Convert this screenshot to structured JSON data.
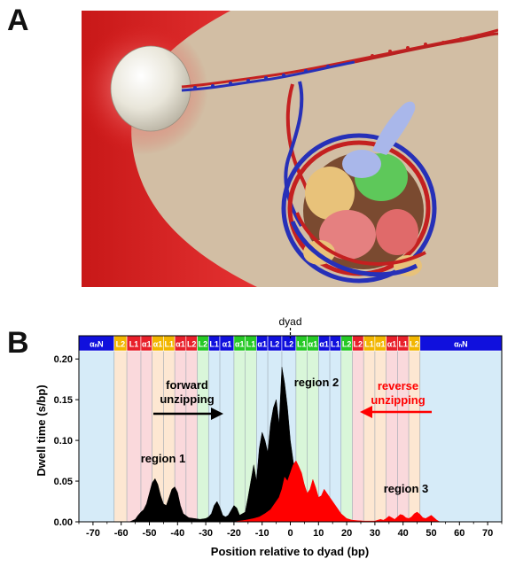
{
  "panels": {
    "a": "A",
    "b": "B"
  },
  "panel_b": {
    "dyad_label": "dyad",
    "region_labels": [
      "region 1",
      "region 2",
      "region 3"
    ],
    "forward": [
      "forward",
      "unzipping"
    ],
    "reverse": [
      "reverse",
      "unzipping"
    ],
    "colors": {
      "forward": "#000000",
      "reverse": "#ff0000"
    },
    "segments": [
      {
        "label": "αₙN",
        "color": "#1010dd",
        "band": "#d6ebf8",
        "from": -75,
        "to": -62.5
      },
      {
        "label": "L2",
        "color": "#f2b600",
        "band": "#fde7d2",
        "from": -62.5,
        "to": -58
      },
      {
        "label": "L1",
        "color": "#e8202a",
        "band": "#fad9dc",
        "from": -58,
        "to": -53
      },
      {
        "label": "α1",
        "color": "#e8202a",
        "band": "#fad9dc",
        "from": -53,
        "to": -49
      },
      {
        "label": "α1",
        "color": "#f2b600",
        "band": "#fde7d2",
        "from": -49,
        "to": -45
      },
      {
        "label": "L1",
        "color": "#f2b600",
        "band": "#fde7d2",
        "from": -45,
        "to": -41
      },
      {
        "label": "α1",
        "color": "#e8202a",
        "band": "#fad9dc",
        "from": -41,
        "to": -37
      },
      {
        "label": "L2",
        "color": "#e8202a",
        "band": "#fad9dc",
        "from": -37,
        "to": -33
      },
      {
        "label": "L2",
        "color": "#26c926",
        "band": "#d9f6d9",
        "from": -33,
        "to": -29
      },
      {
        "label": "L1",
        "color": "#1010dd",
        "band": "#d6ebf8",
        "from": -29,
        "to": -25
      },
      {
        "label": "α1",
        "color": "#1010dd",
        "band": "#d6ebf8",
        "from": -25,
        "to": -20
      },
      {
        "label": "α1",
        "color": "#26c926",
        "band": "#d9f6d9",
        "from": -20,
        "to": -16
      },
      {
        "label": "L1",
        "color": "#26c926",
        "band": "#d9f6d9",
        "from": -16,
        "to": -12
      },
      {
        "label": "α1",
        "color": "#1010dd",
        "band": "#d6ebf8",
        "from": -12,
        "to": -8
      },
      {
        "label": "L2",
        "color": "#1010dd",
        "band": "#d6ebf8",
        "from": -8,
        "to": -3
      },
      {
        "label": "L2",
        "color": "#1010dd",
        "band": "#d6ebf8",
        "from": -3,
        "to": 2
      },
      {
        "label": "L1",
        "color": "#26c926",
        "band": "#d9f6d9",
        "from": 2,
        "to": 6
      },
      {
        "label": "α1",
        "color": "#26c926",
        "band": "#d9f6d9",
        "from": 6,
        "to": 10
      },
      {
        "label": "α1",
        "color": "#1010dd",
        "band": "#d6ebf8",
        "from": 10,
        "to": 14
      },
      {
        "label": "L1",
        "color": "#1010dd",
        "band": "#d6ebf8",
        "from": 14,
        "to": 18
      },
      {
        "label": "L2",
        "color": "#26c926",
        "band": "#d9f6d9",
        "from": 18,
        "to": 22
      },
      {
        "label": "L2",
        "color": "#e8202a",
        "band": "#fad9dc",
        "from": 22,
        "to": 26
      },
      {
        "label": "L1",
        "color": "#f2b600",
        "band": "#fde7d2",
        "from": 26,
        "to": 30
      },
      {
        "label": "α1",
        "color": "#f2b600",
        "band": "#fde7d2",
        "from": 30,
        "to": 34
      },
      {
        "label": "α1",
        "color": "#e8202a",
        "band": "#fad9dc",
        "from": 34,
        "to": 38
      },
      {
        "label": "L1",
        "color": "#e8202a",
        "band": "#fad9dc",
        "from": 38,
        "to": 42
      },
      {
        "label": "L2",
        "color": "#f2b600",
        "band": "#fde7d2",
        "from": 42,
        "to": 46
      },
      {
        "label": "αₙN",
        "color": "#1010dd",
        "band": "#d6ebf8",
        "from": 46,
        "to": 75
      }
    ]
  },
  "chart_data": {
    "type": "area",
    "title": "",
    "xlabel": "Position relative to dyad (bp)",
    "ylabel": "Dwell time (s/bp)",
    "xlim": [
      -75,
      75
    ],
    "ylim": [
      0,
      0.21
    ],
    "xticks": [
      -70,
      -60,
      -50,
      -40,
      -30,
      -20,
      -10,
      0,
      10,
      20,
      30,
      40,
      50,
      60,
      70
    ],
    "yticks": [
      0,
      0.05,
      0.1,
      0.15,
      0.2
    ],
    "ytick_labels": [
      "0.00",
      "0.05",
      "0.10",
      "0.15",
      "0.20"
    ],
    "grid": false,
    "series": [
      {
        "key": "forward",
        "x": [
          -57,
          -55,
          -54,
          -53,
          -52,
          -51,
          -50,
          -49,
          -48,
          -47,
          -46,
          -45,
          -44,
          -43,
          -42,
          -41,
          -40,
          -39,
          -38,
          -36,
          -34,
          -32,
          -30,
          -29,
          -28,
          -27,
          -26,
          -25,
          -24,
          -23,
          -22,
          -21,
          -20,
          -19,
          -18,
          -16,
          -15,
          -14,
          -13,
          -12,
          -11,
          -10,
          -9,
          -8,
          -7,
          -6,
          -5,
          -4,
          -3,
          -2,
          -1,
          0,
          1,
          2,
          3,
          4,
          5,
          6,
          7,
          8,
          9,
          10,
          11,
          12,
          13,
          14,
          15,
          16,
          17,
          18,
          19,
          20,
          21
        ],
        "y": [
          0,
          0.003,
          0.008,
          0.012,
          0.015,
          0.022,
          0.035,
          0.048,
          0.053,
          0.046,
          0.032,
          0.022,
          0.02,
          0.03,
          0.04,
          0.043,
          0.036,
          0.02,
          0.01,
          0.005,
          0.004,
          0.003,
          0.004,
          0.006,
          0.01,
          0.02,
          0.025,
          0.018,
          0.008,
          0.006,
          0.008,
          0.014,
          0.02,
          0.017,
          0.008,
          0.012,
          0.03,
          0.05,
          0.07,
          0.05,
          0.09,
          0.11,
          0.1,
          0.085,
          0.12,
          0.14,
          0.15,
          0.12,
          0.19,
          0.17,
          0.14,
          0.1,
          0.075,
          0.055,
          0.05,
          0.055,
          0.045,
          0.03,
          0.035,
          0.04,
          0.033,
          0.03,
          0.022,
          0.016,
          0.015,
          0.012,
          0.008,
          0.005,
          0.003,
          0.002,
          0.001,
          0.0005,
          0
        ]
      },
      {
        "key": "reverse",
        "x": [
          -20,
          -16,
          -13,
          -11,
          -9,
          -7,
          -6,
          -5,
          -4,
          -3,
          -2,
          -1,
          0,
          1,
          2,
          3,
          4,
          5,
          6,
          7,
          8,
          9,
          10,
          11,
          12,
          13,
          14,
          15,
          16,
          17,
          18,
          20,
          22,
          26,
          30,
          32,
          33,
          34,
          35,
          36,
          37,
          38,
          39,
          40,
          41,
          42,
          43,
          44,
          45,
          46,
          47,
          48,
          49,
          50,
          51,
          52,
          53
        ],
        "y": [
          0,
          0.002,
          0.004,
          0.006,
          0.01,
          0.015,
          0.02,
          0.025,
          0.03,
          0.04,
          0.055,
          0.05,
          0.06,
          0.07,
          0.075,
          0.068,
          0.06,
          0.045,
          0.035,
          0.04,
          0.052,
          0.042,
          0.03,
          0.032,
          0.04,
          0.035,
          0.03,
          0.025,
          0.02,
          0.015,
          0.01,
          0.004,
          0.002,
          0.001,
          0.001,
          0.003,
          0.002,
          0.004,
          0.007,
          0.005,
          0.003,
          0.006,
          0.009,
          0.008,
          0.005,
          0.004,
          0.006,
          0.01,
          0.012,
          0.009,
          0.005,
          0.004,
          0.006,
          0.008,
          0.005,
          0.002,
          0
        ]
      }
    ]
  }
}
